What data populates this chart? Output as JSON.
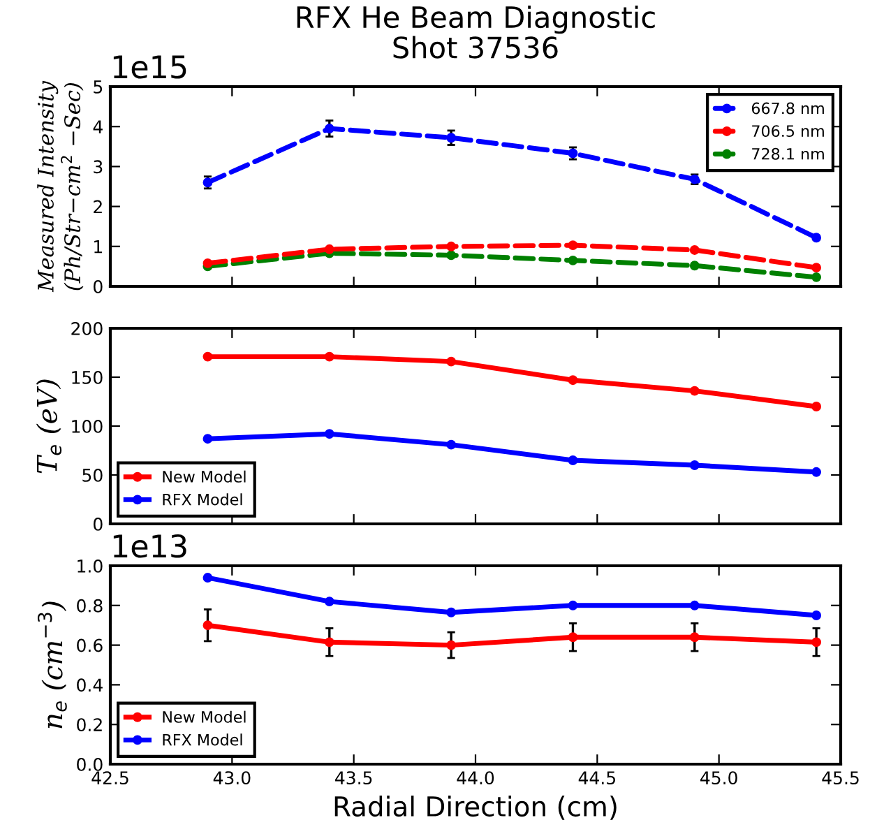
{
  "chart_data": [
    {
      "type": "line",
      "title": "RFX He Beam Diagnostic",
      "subtitle": "Shot 37536",
      "ylabel": "Measured Intensity\n(Ph/Str−cm$^{2}$ −Sec)",
      "annotations": [
        "1e15"
      ],
      "x": [
        42.9,
        43.4,
        43.9,
        44.4,
        44.9,
        45.4
      ],
      "series": [
        {
          "name": "667.8 nm",
          "color": "#0000ff",
          "values": [
            2.6,
            3.95,
            3.72,
            3.33,
            2.68,
            1.22
          ],
          "errors": [
            0.15,
            0.2,
            0.18,
            0.15,
            0.12,
            0.05
          ]
        },
        {
          "name": "706.5 nm",
          "color": "#ff0000",
          "values": [
            0.58,
            0.93,
            1.0,
            1.03,
            0.91,
            0.47
          ]
        },
        {
          "name": "728.1 nm",
          "color": "#008000",
          "values": [
            0.5,
            0.83,
            0.78,
            0.65,
            0.52,
            0.23
          ]
        }
      ],
      "xlim": [
        42.5,
        45.5
      ],
      "xticks": [
        42.5,
        43.0,
        43.5,
        44.0,
        44.5,
        45.0,
        45.5
      ],
      "ylim": [
        0,
        5
      ],
      "yticks": [
        0,
        1,
        2,
        3,
        4,
        5
      ],
      "tick_labels": "y",
      "legend": "top right",
      "marker": "circle",
      "line_style": "dashed",
      "grid": false
    },
    {
      "type": "line",
      "ylabel": "T$_{e}$ (eV)",
      "x": [
        42.9,
        43.4,
        43.9,
        44.4,
        44.9,
        45.4
      ],
      "series": [
        {
          "name": "New Model",
          "color": "#ff0000",
          "values": [
            171,
            171,
            166,
            147,
            136,
            120
          ]
        },
        {
          "name": "RFX Model",
          "color": "#0000ff",
          "values": [
            87,
            92,
            81,
            65,
            60,
            53
          ]
        }
      ],
      "xlim": [
        42.5,
        45.5
      ],
      "xticks": [
        42.5,
        43.0,
        43.5,
        44.0,
        44.5,
        45.0,
        45.5
      ],
      "ylim": [
        0,
        200
      ],
      "yticks": [
        0,
        50,
        100,
        150,
        200
      ],
      "tick_labels": "y",
      "legend": "bottom left",
      "marker": "circle",
      "line_style": "solid",
      "grid": false
    },
    {
      "type": "line",
      "ylabel": "n$_{e}$ (cm$^{−3}$)",
      "xlabel": "Radial Direction (cm)",
      "annotations": [
        "1e13"
      ],
      "x": [
        42.9,
        43.4,
        43.9,
        44.4,
        44.9,
        45.4
      ],
      "series": [
        {
          "name": "New Model",
          "color": "#ff0000",
          "values": [
            0.7,
            0.615,
            0.6,
            0.64,
            0.64,
            0.615
          ],
          "errors": [
            0.08,
            0.07,
            0.065,
            0.07,
            0.07,
            0.07
          ]
        },
        {
          "name": "RFX Model",
          "color": "#0000ff",
          "values": [
            0.94,
            0.82,
            0.765,
            0.8,
            0.8,
            0.75
          ]
        }
      ],
      "xlim": [
        42.5,
        45.5
      ],
      "xticks": [
        42.5,
        {
          "value": 43,
          "label": "43.0"
        },
        43.5,
        {
          "value": 44,
          "label": "44.0"
        },
        44.5,
        {
          "value": 45,
          "label": "45.0"
        },
        45.5
      ],
      "ylim": [
        0,
        1.0
      ],
      "yticks": [
        {
          "value": 0,
          "label": "0.0"
        },
        0.2,
        0.4,
        0.6,
        0.8,
        {
          "value": 1.0,
          "label": "1.0"
        }
      ],
      "legend": "bottom left",
      "marker": "circle",
      "line_style": "solid",
      "grid": false
    }
  ]
}
